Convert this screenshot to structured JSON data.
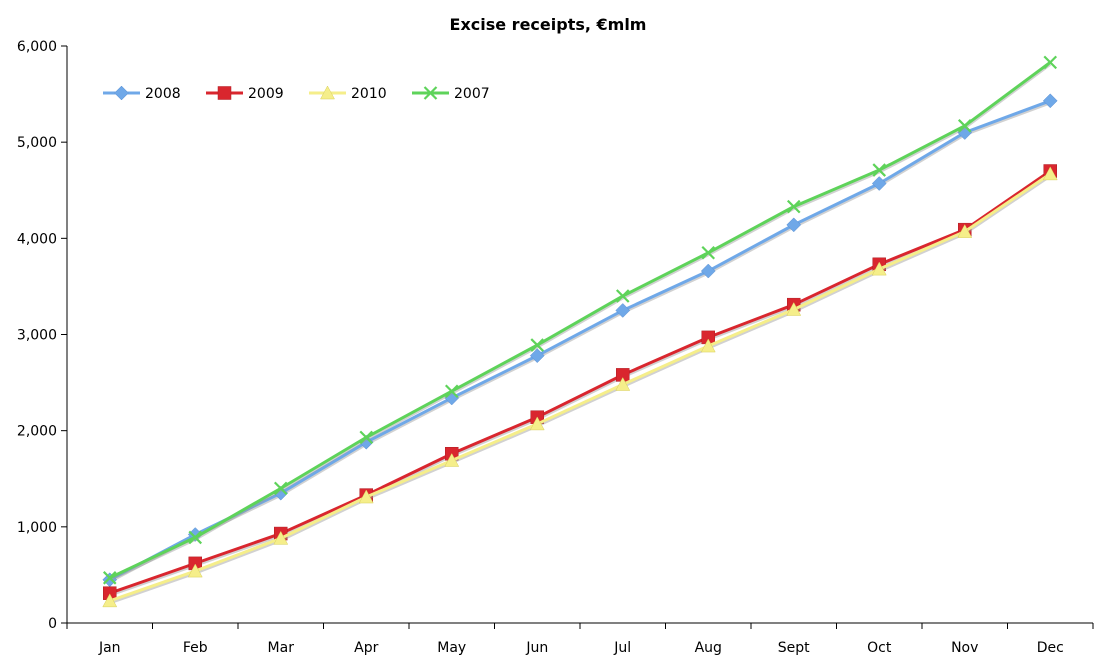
{
  "chart_data": {
    "type": "line",
    "title": "Excise receipts, €mlm",
    "xlabel": "",
    "ylabel": "",
    "categories": [
      "Jan",
      "Feb",
      "Mar",
      "Apr",
      "May",
      "Jun",
      "Jul",
      "Aug",
      "Sept",
      "Oct",
      "Nov",
      "Dec"
    ],
    "ylim": [
      0,
      6000
    ],
    "yticks": [
      0,
      1000,
      2000,
      3000,
      4000,
      5000,
      6000
    ],
    "ytick_labels": [
      "0",
      "1,000",
      "2,000",
      "3,000",
      "4,000",
      "5,000",
      "6,000"
    ],
    "grid": false,
    "legend_position": "top-left",
    "series": [
      {
        "name": "2008",
        "marker": "diamond",
        "color": "#6fa8e8",
        "values": [
          450,
          920,
          1350,
          1880,
          2340,
          2780,
          3250,
          3660,
          4140,
          4570,
          5100,
          5430
        ]
      },
      {
        "name": "2009",
        "marker": "square",
        "color": "#d9262e",
        "values": [
          310,
          620,
          930,
          1330,
          1760,
          2140,
          2580,
          2970,
          3310,
          3730,
          4090,
          4700
        ]
      },
      {
        "name": "2010",
        "marker": "triangle",
        "color": "#f5ee8a",
        "values": [
          230,
          540,
          880,
          1310,
          1690,
          2070,
          2480,
          2880,
          3260,
          3680,
          4070,
          4670
        ]
      },
      {
        "name": "2007",
        "marker": "x",
        "color": "#5ed35a",
        "values": [
          470,
          890,
          1400,
          1930,
          2410,
          2890,
          3400,
          3850,
          4330,
          4710,
          5170,
          5830
        ]
      }
    ]
  }
}
